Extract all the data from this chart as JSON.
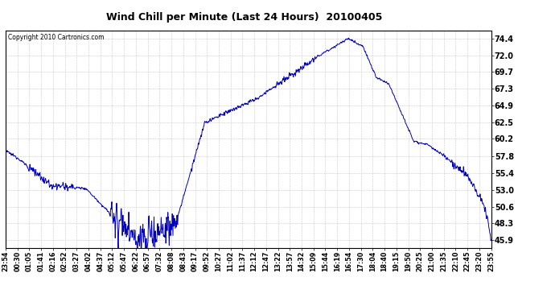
{
  "title": "Wind Chill per Minute (Last 24 Hours)  20100405",
  "copyright": "Copyright 2010 Cartronics.com",
  "line_color": "#0000BB",
  "background_color": "#FFFFFF",
  "plot_bg_color": "#FFFFFF",
  "grid_color": "#BBBBBB",
  "yticks": [
    45.9,
    48.3,
    50.6,
    53.0,
    55.4,
    57.8,
    60.2,
    62.5,
    64.9,
    67.3,
    69.7,
    72.0,
    74.4
  ],
  "ylim": [
    44.8,
    75.6
  ],
  "xtick_labels": [
    "23:54",
    "00:30",
    "01:05",
    "01:41",
    "02:16",
    "02:52",
    "03:27",
    "04:02",
    "04:37",
    "05:12",
    "05:47",
    "06:22",
    "06:57",
    "07:32",
    "08:08",
    "08:43",
    "09:17",
    "09:52",
    "10:27",
    "11:02",
    "11:37",
    "12:12",
    "12:47",
    "13:22",
    "13:57",
    "14:32",
    "15:09",
    "15:44",
    "16:19",
    "16:54",
    "17:30",
    "18:04",
    "18:40",
    "19:15",
    "19:50",
    "20:25",
    "21:00",
    "21:35",
    "22:10",
    "22:45",
    "23:20",
    "23:55"
  ],
  "figsize": [
    6.9,
    3.75
  ],
  "dpi": 100
}
